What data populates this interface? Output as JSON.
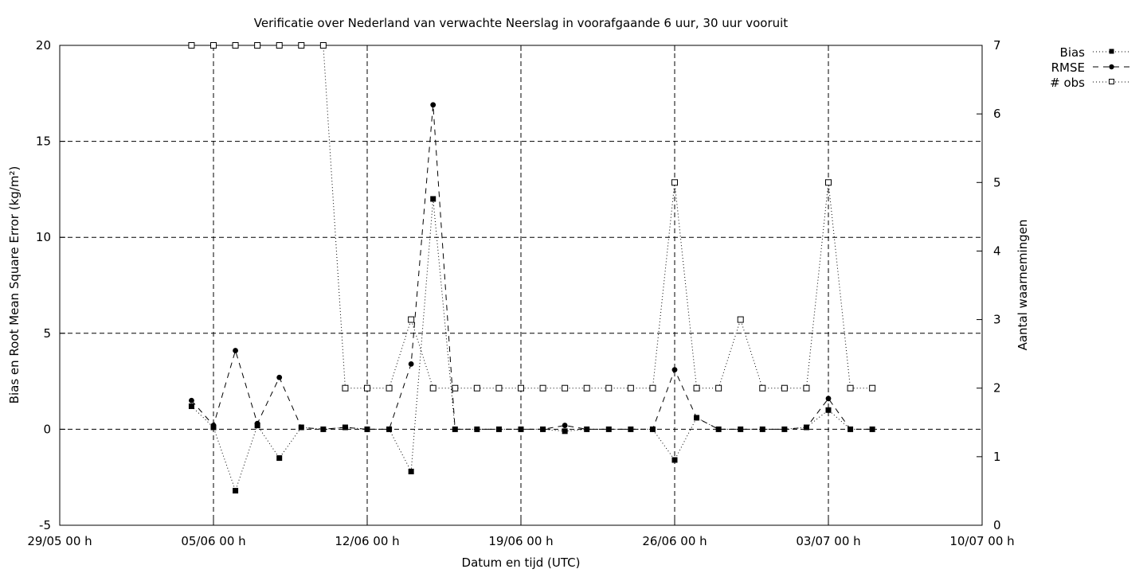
{
  "chart_data": {
    "type": "line",
    "title": "Verificatie over Nederland van verwachte Neerslag in voorafgaande 6 uur, 30 uur vooruit",
    "xlabel": "Datum en tijd (UTC)",
    "ylabel": "Bias en Root Mean Square Error (kg/m²)",
    "y2label": "Aantal waarnemingen",
    "ylim": [
      -5,
      20
    ],
    "y2lim": [
      0,
      7
    ],
    "xlim": [
      "29/05 00 h",
      "10/07 00 h"
    ],
    "x_ticks": [
      "29/05 00 h",
      "05/06 00 h",
      "12/06 00 h",
      "19/06 00 h",
      "26/06 00 h",
      "03/07 00 h",
      "10/07 00 h"
    ],
    "y_ticks": [
      "-5",
      "0",
      "5",
      "10",
      "15",
      "20"
    ],
    "y2_ticks": [
      "0",
      "1",
      "2",
      "3",
      "4",
      "5",
      "6",
      "7"
    ],
    "grid": "dashed, at x ticks 05/06-03/07 and y ticks 0-15",
    "legend_position": "outside top-right",
    "x_dates": [
      "04/06 00 h",
      "05/06 00 h",
      "06/06 00 h",
      "07/06 00 h",
      "08/06 00 h",
      "09/06 00 h",
      "10/06 00 h",
      "11/06 00 h",
      "12/06 00 h",
      "13/06 00 h",
      "14/06 00 h",
      "15/06 00 h",
      "16/06 00 h",
      "17/06 00 h",
      "18/06 00 h",
      "19/06 00 h",
      "20/06 00 h",
      "21/06 00 h",
      "22/06 00 h",
      "23/06 00 h",
      "24/06 00 h",
      "25/06 00 h",
      "26/06 00 h",
      "27/06 00 h",
      "28/06 00 h",
      "29/06 00 h",
      "30/06 00 h",
      "01/07 00 h",
      "02/07 00 h",
      "03/07 00 h",
      "04/07 00 h",
      "05/07 00 h"
    ],
    "x": [
      6,
      7,
      8,
      9,
      10,
      11,
      12,
      13,
      14,
      15,
      16,
      17,
      18,
      19,
      20,
      21,
      22,
      23,
      24,
      25,
      26,
      27,
      28,
      29,
      30,
      31,
      32,
      33,
      34,
      35,
      36,
      37
    ],
    "series": [
      {
        "name": "Bias",
        "axis": "y1",
        "marker": "filled-square",
        "line": "dotted",
        "values": [
          1.2,
          0.1,
          -3.2,
          0.2,
          -1.5,
          0.1,
          0.0,
          0.1,
          0.0,
          0.0,
          -2.2,
          12.0,
          0.0,
          0.0,
          0.0,
          0.0,
          0.0,
          -0.1,
          0.0,
          0.0,
          0.0,
          0.0,
          -1.6,
          0.6,
          0.0,
          0.0,
          0.0,
          0.0,
          0.1,
          1.0,
          0.0,
          0.0
        ]
      },
      {
        "name": "RMSE",
        "axis": "y1",
        "marker": "filled-circle",
        "line": "dashed",
        "values": [
          1.5,
          0.2,
          4.1,
          0.3,
          2.7,
          0.1,
          0.0,
          0.1,
          0.0,
          0.0,
          3.4,
          16.9,
          0.0,
          0.0,
          0.0,
          0.0,
          0.0,
          0.2,
          0.0,
          0.0,
          0.0,
          0.0,
          3.1,
          0.6,
          0.0,
          0.0,
          0.0,
          0.0,
          0.1,
          1.6,
          0.0,
          0.0
        ]
      },
      {
        "name": "# obs",
        "axis": "y2",
        "marker": "open-square",
        "line": "dotted",
        "values": [
          7,
          7,
          7,
          7,
          7,
          7,
          7,
          2,
          2,
          2,
          3,
          2,
          2,
          2,
          2,
          2,
          2,
          2,
          2,
          2,
          2,
          2,
          5,
          2,
          2,
          3,
          2,
          2,
          2,
          5,
          2,
          2
        ]
      }
    ]
  }
}
